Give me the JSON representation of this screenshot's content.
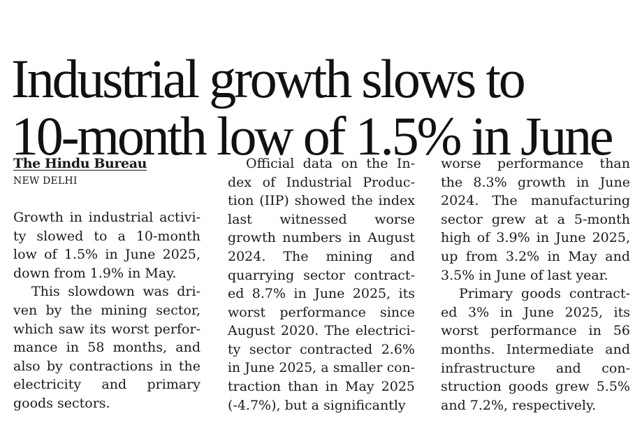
{
  "headline": [
    "Industrial growth slows to",
    "10-month low of 1.5% in June"
  ],
  "byline": "The Hindu Bureau",
  "dateline": "NEW DELHI",
  "columns": [
    {
      "paragraphs": [
        {
          "indent": false,
          "lines": [
            "Growth in industrial activi-",
            "ty slowed to a 10-month",
            "low of 1.5% in June 2025,",
            "down from 1.9% in May."
          ]
        },
        {
          "indent": true,
          "lines": [
            "This slowdown was dri-",
            "ven by the mining sector,",
            "which saw its worst perfor-",
            "mance in 58 months, and",
            "also by contractions in the",
            "electricity and primary",
            "goods sectors."
          ]
        }
      ]
    },
    {
      "paragraphs": [
        {
          "indent": true,
          "lines": [
            "Official data on the In-",
            "dex of Industrial Produc-",
            "tion (IIP) showed the index",
            "last witnessed worse",
            "growth numbers in August",
            "2024. The mining and",
            "quarrying sector contract-",
            "ed 8.7% in June 2025, its",
            "worst performance since",
            "August 2020. The electrici-",
            "ty sector contracted 2.6%",
            "in June 2025, a smaller con-",
            "traction than in May 2025",
            "(-4.7%), but a significantly"
          ]
        }
      ]
    },
    {
      "paragraphs": [
        {
          "indent": false,
          "lines": [
            "worse performance than",
            "the 8.3% growth in June",
            "2024. The manufacturing",
            "sector grew at a 5-month",
            "high of 3.9% in June 2025,",
            "up from 3.2% in May and",
            "3.5% in June of last year."
          ]
        },
        {
          "indent": true,
          "lines": [
            "Primary goods contract-",
            "ed 3% in June 2025, its",
            "worst performance in 56",
            "months. Intermediate and",
            "infrastructure and con-",
            "struction goods grew 5.5%",
            "and 7.2%, respectively."
          ]
        }
      ]
    }
  ]
}
